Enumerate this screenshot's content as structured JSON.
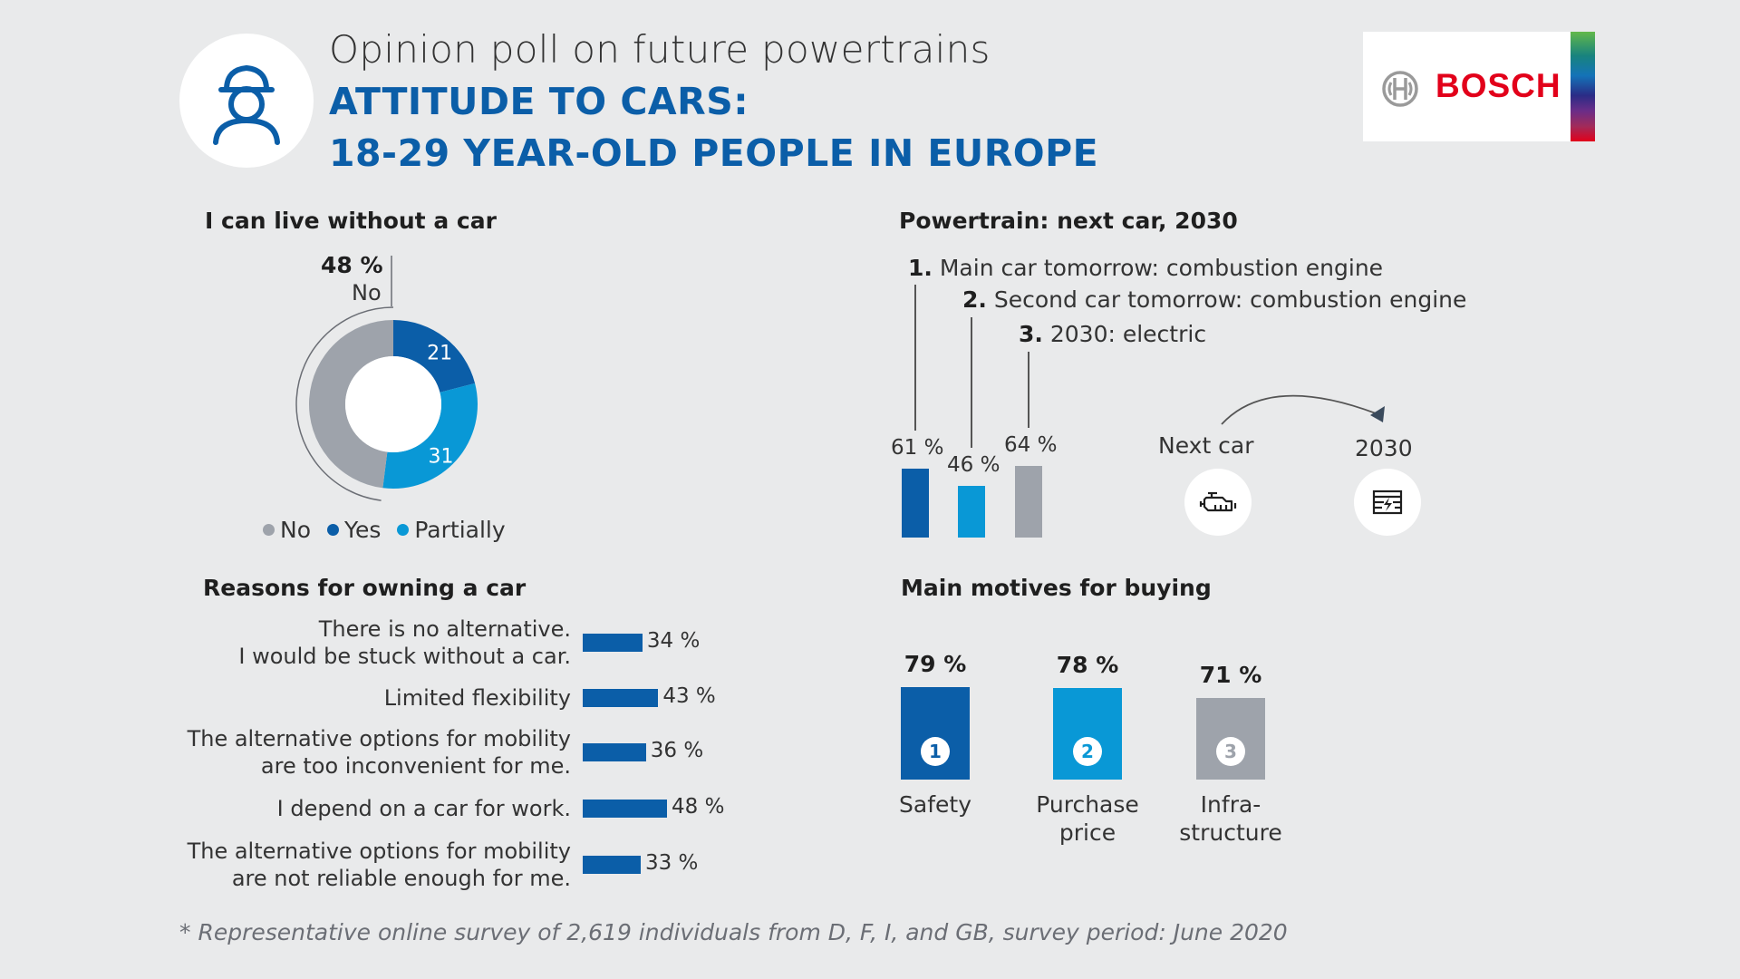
{
  "header": {
    "subtitle": "Opinion poll on future powertrains",
    "title_line1": "ATTITUDE TO CARS:",
    "title_line2": "18-29 YEAR-OLD PEOPLE IN EUROPE",
    "logo_text": "BOSCH",
    "avatar_icon": "person-icon",
    "logo_icon": "bosch-armature-icon"
  },
  "colors": {
    "dark_blue": "#0b5ea8",
    "light_blue": "#0998d6",
    "gray": "#9ea3ab",
    "bosch_red": "#e2001a"
  },
  "footnote": "* Representative online survey of 2,619 individuals from D, F, I, and GB, survey period: June 2020",
  "chart_data": [
    {
      "type": "pie",
      "title": "I can live without a car",
      "callout": {
        "value": "48 %",
        "label": "No"
      },
      "slices": [
        {
          "label": "No",
          "value": 48,
          "color": "#9ea3ab"
        },
        {
          "label": "Yes",
          "value": 21,
          "color": "#0b5ea8"
        },
        {
          "label": "Partially",
          "value": 31,
          "color": "#0998d6"
        }
      ],
      "data_labels": [
        "21",
        "31"
      ],
      "legend": [
        "No",
        "Yes",
        "Partially"
      ]
    },
    {
      "type": "bar",
      "orientation": "horizontal",
      "title": "Reasons for owning a car",
      "categories": [
        [
          "There is no alternative.",
          "I would be stuck without a car."
        ],
        [
          "Limited flexibility"
        ],
        [
          "The alternative options for mobility",
          "are too inconvenient for me."
        ],
        [
          "I depend on a car for work."
        ],
        [
          "The alternative options for mobility",
          "are not reliable enough for me."
        ]
      ],
      "values": [
        34,
        43,
        36,
        48,
        33
      ],
      "value_labels": [
        "34 %",
        "43 %",
        "36 %",
        "48 %",
        "33 %"
      ]
    },
    {
      "type": "bar",
      "title": "Powertrain: next car, 2030",
      "items": [
        {
          "num": "1.",
          "label": "Main car tomorrow: combustion engine",
          "value": 61,
          "value_label": "61 %",
          "color": "#0b5ea8"
        },
        {
          "num": "2.",
          "label": "Second car tomorrow: combustion engine",
          "value": 46,
          "value_label": "46 %",
          "color": "#0998d6"
        },
        {
          "num": "3.",
          "label": "2030: electric",
          "value": 64,
          "value_label": "64 %",
          "color": "#9ea3ab"
        }
      ],
      "transition": {
        "from": "Next car",
        "to": "2030",
        "from_icon": "combustion-engine-icon",
        "to_icon": "electric-battery-icon"
      }
    },
    {
      "type": "bar",
      "title": "Main motives for buying",
      "items": [
        {
          "num": "1",
          "label": [
            "Safety"
          ],
          "value": 79,
          "value_label": "79 %",
          "color": "#0b5ea8"
        },
        {
          "num": "2",
          "label": [
            "Purchase",
            "price"
          ],
          "value": 78,
          "value_label": "78 %",
          "color": "#0998d6"
        },
        {
          "num": "3",
          "label": [
            "Infra-",
            "structure"
          ],
          "value": 71,
          "value_label": "71 %",
          "color": "#9ea3ab"
        }
      ]
    }
  ]
}
